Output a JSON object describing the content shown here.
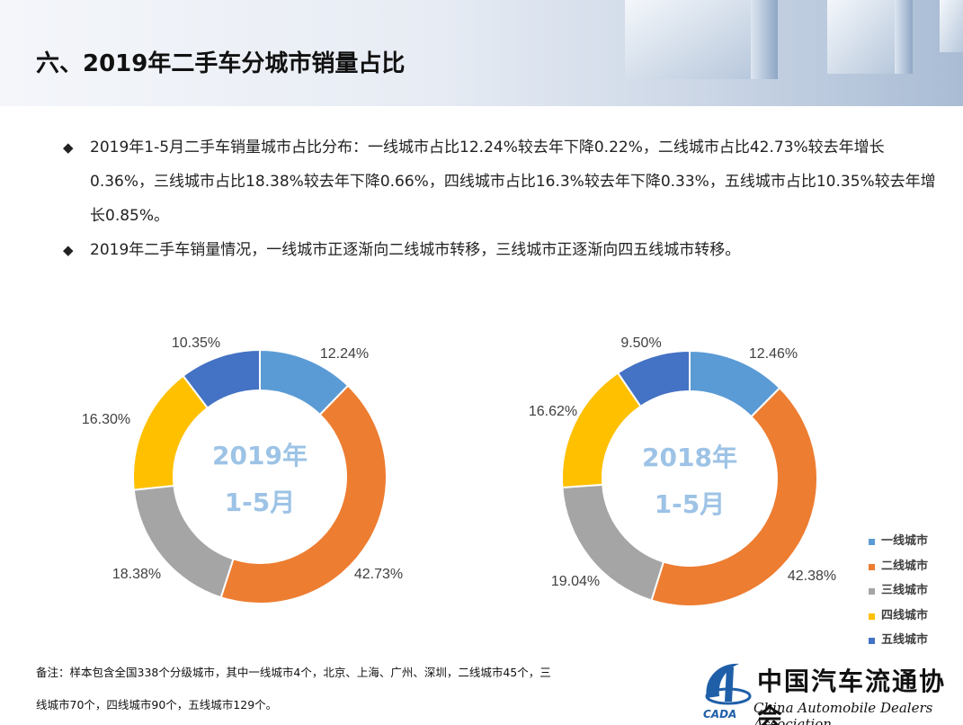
{
  "header": {
    "title": "六、2019年二手车分城市销量占比"
  },
  "bullets": [
    {
      "text": "2019年1-5月二手车销量城市占比分布：一线城市占比12.24%较去年下降0.22%，二线城市占比42.73%较去年增长0.36%，三线城市占比18.38%较去年下降0.66%，四线城市占比16.3%较去年下降0.33%，五线城市占比10.35%较去年增长0.85%。"
    },
    {
      "text": "2019年二手车销量情况，一线城市正逐渐向二线城市转移，三线城市正逐渐向四五线城市转移。"
    }
  ],
  "chart_data": [
    {
      "type": "pie",
      "center_label": [
        "2019年",
        "1-5月"
      ],
      "categories": [
        "一线城市",
        "二线城市",
        "三线城市",
        "四线城市",
        "五线城市"
      ],
      "values": [
        12.24,
        42.73,
        18.38,
        16.3,
        10.35
      ],
      "labels": [
        "12.24%",
        "42.73%",
        "18.38%",
        "16.30%",
        "10.35%"
      ],
      "donut": true
    },
    {
      "type": "pie",
      "center_label": [
        "2018年",
        "1-5月"
      ],
      "categories": [
        "一线城市",
        "二线城市",
        "三线城市",
        "四线城市",
        "五线城市"
      ],
      "values": [
        12.46,
        42.38,
        19.04,
        16.62,
        9.5
      ],
      "labels": [
        "12.46%",
        "42.38%",
        "19.04%",
        "16.62%",
        "9.50%"
      ],
      "donut": true
    }
  ],
  "legend": {
    "items": [
      {
        "label": "一线城市",
        "color": "#5b9bd5"
      },
      {
        "label": "二线城市",
        "color": "#ed7d31"
      },
      {
        "label": "三线城市",
        "color": "#a5a5a5"
      },
      {
        "label": "四线城市",
        "color": "#ffc000"
      },
      {
        "label": "五线城市",
        "color": "#4472c4"
      }
    ],
    "position": "right"
  },
  "colors": [
    "#5b9bd5",
    "#ed7d31",
    "#a5a5a5",
    "#ffc000",
    "#4472c4"
  ],
  "footnote": {
    "line1": "备注：样本包含全国338个分级城市，其中一线城市4个，北京、上海、广州、深圳，二线城市45个，三",
    "line2": "线城市70个，四线城市90个，五线城市129个。"
  },
  "logo": {
    "cn": "中国汽车流通协会",
    "en": "China Automobile Dealers Association",
    "abbr": "CADA"
  }
}
